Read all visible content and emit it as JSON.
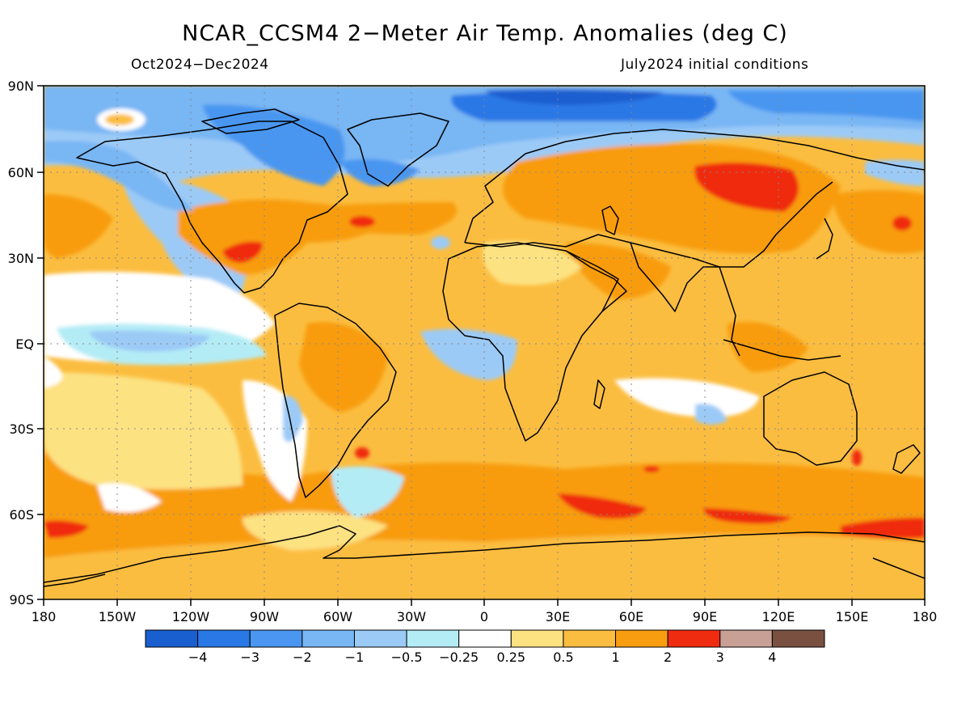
{
  "title": "NCAR_CCSM4 2−Meter Air Temp. Anomalies (deg C)",
  "period": "Oct2024−Dec2024",
  "initial_conditions": "July2024 initial conditions",
  "latitude_labels": [
    "90N",
    "60N",
    "30N",
    "EQ",
    "30S",
    "60S",
    "90S"
  ],
  "longitude_labels": [
    "180",
    "150W",
    "120W",
    "90W",
    "60W",
    "30W",
    "0",
    "30E",
    "60E",
    "90E",
    "120E",
    "150E",
    "180"
  ],
  "colorbar": {
    "colors": [
      "#1a5fd0",
      "#2a78e6",
      "#4a96f0",
      "#78b6f4",
      "#9ccaf6",
      "#b4ecf6",
      "#ffffff",
      "#fde282",
      "#fbbd40",
      "#f89c10",
      "#f02c10",
      "#c8a096",
      "#7a5040"
    ],
    "labels": [
      "−4",
      "−3",
      "−2",
      "−1",
      "−0.5",
      "−0.25",
      "0.25",
      "0.5",
      "1",
      "2",
      "3",
      "4"
    ]
  }
}
